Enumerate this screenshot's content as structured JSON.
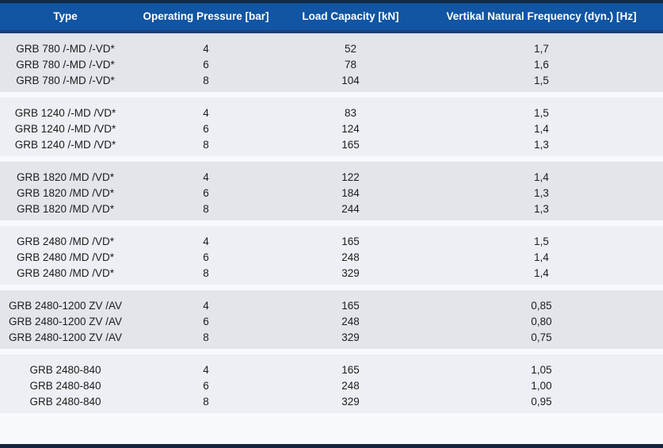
{
  "colors": {
    "page_bg": "#f7f9fc",
    "header_bg": "#1155a3",
    "header_top_line": "#112b47",
    "header_bottom_border": "#1c4077",
    "group_band_dark": "#e2e5ea",
    "group_band_light": "#edeff4",
    "bottom_bar": "#13263d",
    "body_text": "#1c1c1c",
    "header_text": "#ffffff"
  },
  "table": {
    "columns": [
      {
        "label": "Type"
      },
      {
        "label": "Operating Pressure [bar]"
      },
      {
        "label": "Load Capacity [kN]"
      },
      {
        "label": "Vertikal Natural Frequency (dyn.) [Hz]"
      }
    ],
    "groups": [
      {
        "type": "GRB 780 /-MD /-VD*",
        "rows": [
          {
            "pressure": "4",
            "load": "52",
            "frequency": "1,7"
          },
          {
            "pressure": "6",
            "load": "78",
            "frequency": "1,6"
          },
          {
            "pressure": "8",
            "load": "104",
            "frequency": "1,5"
          }
        ]
      },
      {
        "type": "GRB 1240 /-MD /VD*",
        "rows": [
          {
            "pressure": "4",
            "load": "83",
            "frequency": "1,5"
          },
          {
            "pressure": "6",
            "load": "124",
            "frequency": "1,4"
          },
          {
            "pressure": "8",
            "load": "165",
            "frequency": "1,3"
          }
        ]
      },
      {
        "type": "GRB 1820 /MD /VD*",
        "rows": [
          {
            "pressure": "4",
            "load": "122",
            "frequency": "1,4"
          },
          {
            "pressure": "6",
            "load": "184",
            "frequency": "1,3"
          },
          {
            "pressure": "8",
            "load": "244",
            "frequency": "1,3"
          }
        ]
      },
      {
        "type": "GRB 2480 /MD /VD*",
        "rows": [
          {
            "pressure": "4",
            "load": "165",
            "frequency": "1,5"
          },
          {
            "pressure": "6",
            "load": "248",
            "frequency": "1,4"
          },
          {
            "pressure": "8",
            "load": "329",
            "frequency": "1,4"
          }
        ]
      },
      {
        "type": "GRB 2480-1200 ZV /AV",
        "rows": [
          {
            "pressure": "4",
            "load": "165",
            "frequency": "0,85"
          },
          {
            "pressure": "6",
            "load": "248",
            "frequency": "0,80"
          },
          {
            "pressure": "8",
            "load": "329",
            "frequency": "0,75"
          }
        ]
      },
      {
        "type": "GRB 2480-840",
        "rows": [
          {
            "pressure": "4",
            "load": "165",
            "frequency": "1,05"
          },
          {
            "pressure": "6",
            "load": "248",
            "frequency": "1,00"
          },
          {
            "pressure": "8",
            "load": "329",
            "frequency": "0,95"
          }
        ]
      }
    ]
  }
}
